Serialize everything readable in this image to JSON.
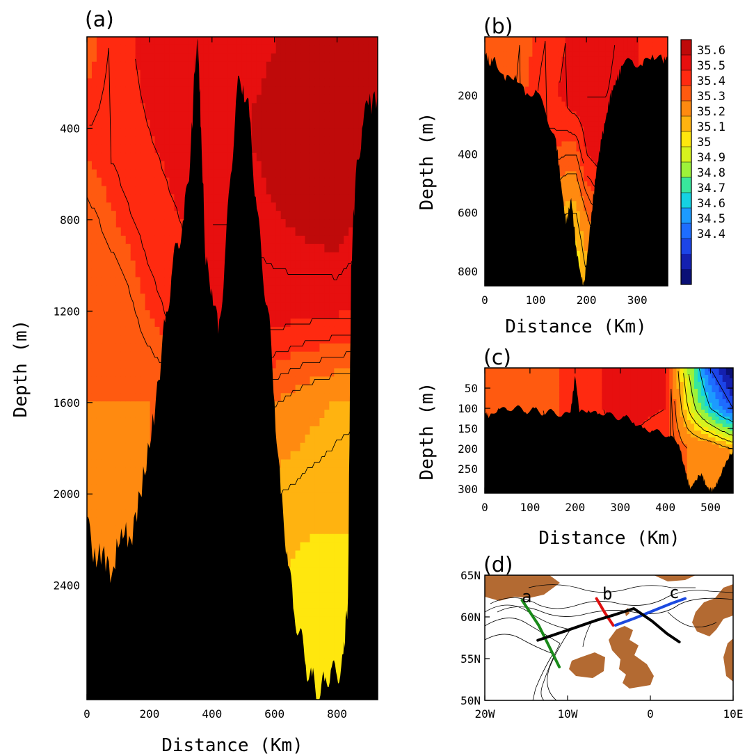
{
  "chart_data": [
    {
      "panel": "(a)",
      "type": "heatmap",
      "xlabel": "Distance (Km)",
      "ylabel": "Depth (m)",
      "xlim": [
        0,
        930
      ],
      "ylim": [
        2900,
        0
      ],
      "x_ticks": [
        0,
        200,
        400,
        600,
        800
      ],
      "y_ticks": [
        400,
        800,
        1200,
        1600,
        2000,
        2400
      ],
      "x_tick_labels": [
        "0",
        "200",
        "400",
        "600",
        "800"
      ],
      "y_tick_labels": [
        "400",
        "800",
        "1200",
        "1600",
        "2000",
        "2400"
      ],
      "bathymetry": {
        "x": [
          0,
          20,
          50,
          80,
          110,
          140,
          170,
          200,
          230,
          250,
          270,
          290,
          310,
          330,
          345,
          355,
          365,
          380,
          400,
          420,
          440,
          460,
          480,
          500,
          520,
          540,
          560,
          580,
          600,
          620,
          640,
          660,
          680,
          700,
          720,
          740,
          760,
          780,
          800,
          820,
          835,
          845,
          860,
          880,
          900,
          930
        ],
        "depth": [
          2100,
          2300,
          2250,
          2350,
          2150,
          2200,
          2000,
          1800,
          1500,
          1250,
          1050,
          900,
          800,
          550,
          150,
          20,
          400,
          1000,
          1100,
          1300,
          1000,
          600,
          230,
          210,
          350,
          700,
          1000,
          1200,
          1600,
          2000,
          2250,
          2500,
          2600,
          2750,
          2800,
          2900,
          2820,
          2770,
          2800,
          2700,
          2450,
          1000,
          600,
          400,
          300,
          250
        ]
      },
      "salinity_field": {
        "x": [
          0,
          100,
          200,
          300,
          400,
          500,
          600,
          700,
          800,
          900
        ],
        "depth": [
          0,
          400,
          800,
          1200,
          1600,
          2000,
          2400
        ],
        "values": [
          [
            35.35,
            35.42,
            35.48,
            35.5,
            35.5,
            35.5,
            35.52,
            35.55,
            35.58,
            35.55
          ],
          [
            35.4,
            35.42,
            35.45,
            35.48,
            35.5,
            35.52,
            35.55,
            35.58,
            35.6,
            35.56
          ],
          [
            35.33,
            35.38,
            35.42,
            35.45,
            35.5,
            35.5,
            35.52,
            35.54,
            35.56,
            35.5
          ],
          [
            35.3,
            35.31,
            35.38,
            35.42,
            35.48,
            35.48,
            35.48,
            35.47,
            35.46,
            35.45
          ],
          [
            35.3,
            35.3,
            35.3,
            35.33,
            35.38,
            35.35,
            35.3,
            35.25,
            35.22,
            35.2
          ],
          [
            35.3,
            35.3,
            35.3,
            35.3,
            35.3,
            35.25,
            35.2,
            35.18,
            35.17,
            35.17
          ],
          [
            35.3,
            35.3,
            35.3,
            35.3,
            35.3,
            35.2,
            35.15,
            35.12,
            35.12,
            35.12
          ]
        ]
      }
    },
    {
      "panel": "(b)",
      "type": "heatmap",
      "xlabel": "Distance (Km)",
      "ylabel": "Depth (m)",
      "xlim": [
        0,
        360
      ],
      "ylim": [
        850,
        0
      ],
      "x_ticks": [
        0,
        100,
        200,
        300
      ],
      "y_ticks": [
        200,
        400,
        600,
        800
      ],
      "x_tick_labels": [
        "0",
        "100",
        "200",
        "300"
      ],
      "y_tick_labels": [
        "200",
        "400",
        "600",
        "800"
      ],
      "bathymetry": {
        "x": [
          0,
          10,
          20,
          40,
          60,
          80,
          100,
          120,
          140,
          150,
          160,
          170,
          180,
          190,
          195,
          200,
          210,
          220,
          230,
          240,
          250,
          260,
          270,
          290,
          310,
          330,
          350,
          360
        ],
        "depth": [
          50,
          90,
          70,
          150,
          130,
          200,
          180,
          260,
          350,
          500,
          640,
          550,
          720,
          830,
          840,
          780,
          600,
          450,
          350,
          260,
          180,
          150,
          100,
          80,
          100,
          60,
          80,
          70
        ]
      },
      "salinity_field": {
        "x": [
          0,
          60,
          120,
          160,
          180,
          200,
          240,
          300,
          360
        ],
        "depth": [
          0,
          200,
          400,
          600,
          800
        ],
        "values": [
          [
            35.32,
            35.34,
            35.4,
            35.45,
            35.48,
            35.5,
            35.52,
            35.45,
            35.4
          ],
          [
            35.32,
            35.35,
            35.42,
            35.47,
            35.5,
            35.5,
            35.5,
            35.45,
            35.4
          ],
          [
            35.32,
            35.35,
            35.38,
            35.35,
            35.35,
            35.45,
            35.5,
            35.45,
            35.4
          ],
          [
            35.3,
            35.3,
            35.25,
            35.2,
            35.2,
            35.3,
            35.4,
            35.4,
            35.4
          ],
          [
            35.3,
            35.3,
            35.2,
            35.1,
            35.1,
            35.2,
            35.35,
            35.4,
            35.4
          ]
        ]
      }
    },
    {
      "panel": "(c)",
      "type": "heatmap",
      "xlabel": "Distance (Km)",
      "ylabel": "Depth (m)",
      "xlim": [
        0,
        550
      ],
      "ylim": [
        310,
        0
      ],
      "x_ticks": [
        0,
        100,
        200,
        300,
        400,
        500
      ],
      "y_ticks": [
        50,
        100,
        150,
        200,
        250,
        300
      ],
      "x_tick_labels": [
        "0",
        "100",
        "200",
        "300",
        "400",
        "500"
      ],
      "y_tick_labels": [
        "50",
        "100",
        "150",
        "200",
        "250",
        "300"
      ],
      "bathymetry": {
        "x": [
          0,
          10,
          30,
          50,
          70,
          90,
          110,
          130,
          150,
          170,
          190,
          200,
          210,
          230,
          250,
          270,
          290,
          310,
          330,
          350,
          370,
          390,
          410,
          430,
          445,
          455,
          465,
          480,
          490,
          500,
          510,
          520,
          535,
          550
        ],
        "depth": [
          110,
          120,
          100,
          105,
          95,
          110,
          100,
          115,
          105,
          120,
          110,
          20,
          110,
          105,
          115,
          110,
          125,
          120,
          135,
          150,
          155,
          160,
          170,
          190,
          260,
          300,
          280,
          260,
          290,
          305,
          295,
          270,
          230,
          205
        ]
      },
      "salinity_field": {
        "x": [
          0,
          100,
          200,
          300,
          400,
          450,
          500,
          550
        ],
        "depth": [
          0,
          100,
          200,
          300
        ],
        "values": [
          [
            35.3,
            35.33,
            35.4,
            35.48,
            35.45,
            35.0,
            34.6,
            34.4
          ],
          [
            35.3,
            35.33,
            35.4,
            35.48,
            35.45,
            35.1,
            34.8,
            34.6
          ],
          [
            35.3,
            35.32,
            35.38,
            35.45,
            35.4,
            35.3,
            35.3,
            35.2
          ],
          [
            35.3,
            35.3,
            35.35,
            35.4,
            35.35,
            35.3,
            35.3,
            35.3
          ]
        ]
      }
    },
    {
      "panel": "colorbar",
      "type": "heatmap",
      "levels": [
        35.6,
        35.5,
        35.4,
        35.3,
        35.2,
        35.1,
        35,
        34.9,
        34.8,
        34.7,
        34.6,
        34.5,
        34.4
      ],
      "level_labels": [
        "35.6",
        "35.5",
        "35.4",
        "35.3",
        "35.2",
        "35.1",
        "35",
        "34.9",
        "34.8",
        "34.7",
        "34.6",
        "34.5",
        "34.4"
      ],
      "colors": [
        "#bf0a0a",
        "#e70f0f",
        "#ff2a10",
        "#ff5a10",
        "#ff8a10",
        "#ffb310",
        "#ffe70e",
        "#d7f21e",
        "#9df23a",
        "#39e69c",
        "#15d2e2",
        "#1c9bff",
        "#1e6dff",
        "#1c45e8",
        "#1420b0",
        "#0a1076"
      ]
    },
    {
      "panel": "(d)",
      "type": "line",
      "xlim": [
        -20,
        10
      ],
      "ylim": [
        50,
        65
      ],
      "x_ticks": [
        -20,
        -10,
        0,
        10
      ],
      "y_ticks": [
        50,
        55,
        60,
        65
      ],
      "x_tick_labels": [
        "20W",
        "10W",
        "0",
        "10E"
      ],
      "y_tick_labels": [
        "50N",
        "55N",
        "60N",
        "65N"
      ],
      "section_labels": [
        "a",
        "b",
        "c"
      ],
      "sections": [
        {
          "color": "#1a8a1a",
          "lon": [
            -15.5,
            -14.5,
            -13.5,
            -12.5,
            -11
          ],
          "lat": [
            62,
            60.5,
            59,
            57,
            54
          ]
        },
        {
          "color": "#e01010",
          "lon": [
            -6.5,
            -5.5,
            -4.5
          ],
          "lat": [
            62.2,
            60.5,
            59
          ]
        },
        {
          "color": "#1c4ae0",
          "lon": [
            -4.2,
            -2,
            0.5,
            2.5,
            4.2
          ],
          "lat": [
            59,
            59.8,
            60.8,
            61.6,
            62.2
          ]
        },
        {
          "color": "#000000",
          "lon": [
            -13.6,
            -10,
            -6.5,
            -4.5,
            -2,
            0.2,
            2,
            3.5
          ],
          "lat": [
            57.2,
            58.4,
            59.6,
            60.2,
            61,
            59.5,
            58,
            57
          ]
        }
      ]
    }
  ],
  "panel_labels": [
    "(a)",
    "(b)",
    "(c)",
    "(d)"
  ],
  "axis_text": {
    "depth": "Depth (m)",
    "distance": "Distance (Km)"
  }
}
